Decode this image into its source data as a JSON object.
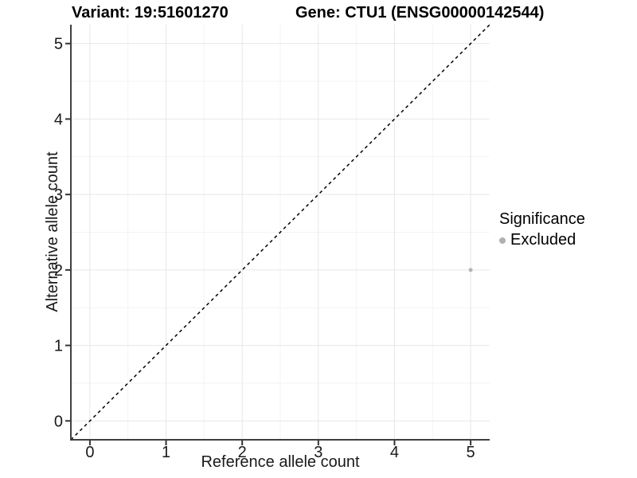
{
  "titles": {
    "left": "Variant: 19:51601270",
    "right": "Gene: CTU1 (ENSG00000142544)"
  },
  "chart_data": {
    "type": "scatter",
    "title": "Variant: 19:51601270   Gene: CTU1 (ENSG00000142544)",
    "xlabel": "Reference allele count",
    "ylabel": "Alternative allele count",
    "xlim": [
      -0.25,
      5.25
    ],
    "ylim": [
      -0.25,
      5.25
    ],
    "xticks": [
      0,
      1,
      2,
      3,
      4,
      5
    ],
    "yticks": [
      0,
      1,
      2,
      3,
      4,
      5
    ],
    "grid": {
      "major": true,
      "minor": true
    },
    "reference_line": {
      "slope": 1,
      "intercept": 0,
      "linetype": "dashed",
      "color": "#000000"
    },
    "series": [
      {
        "name": "Excluded",
        "color": "#b5b5b5",
        "points": [
          {
            "x": 5,
            "y": 2
          }
        ]
      }
    ],
    "legend": {
      "position": "right",
      "title": "Significance",
      "items": [
        {
          "label": "Excluded",
          "color": "#b0b0b0"
        }
      ]
    },
    "colors": {
      "grid_major": "#e7e7e7",
      "grid_minor": "#f3f3f3",
      "axis_line": "#3f3f3f",
      "tick_mark": "#333333",
      "tick_label": "#1a1a1a",
      "point": "#b5b5b5"
    }
  }
}
